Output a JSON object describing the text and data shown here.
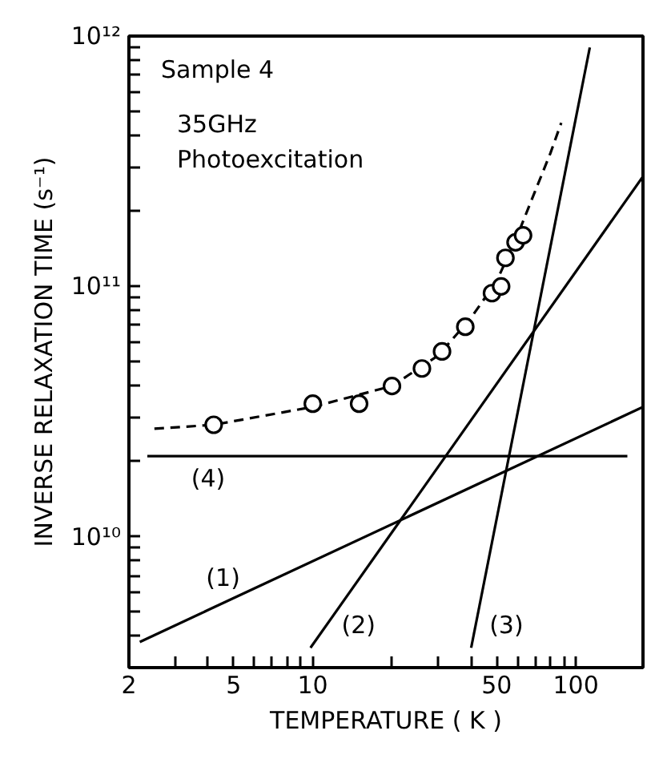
{
  "chart_data": {
    "type": "scatter",
    "xlabel": "TEMPERATURE ( K )",
    "ylabel": "INVERSE RELAXATION TIME (s⁻¹)",
    "log": "xy",
    "grid": false,
    "xlim": [
      2,
      180
    ],
    "ylim": [
      3000000000.0,
      1000000000000.0
    ],
    "xticks": [
      2,
      {
        "value": 3,
        "label": null
      },
      {
        "value": 4,
        "label": null
      },
      5,
      {
        "value": 6,
        "label": null
      },
      {
        "value": 7,
        "label": null
      },
      {
        "value": 8,
        "label": null
      },
      {
        "value": 9,
        "label": null
      },
      10,
      {
        "value": 20,
        "label": null
      },
      {
        "value": 30,
        "label": null
      },
      {
        "value": 40,
        "label": null
      },
      50,
      {
        "value": 60,
        "label": null
      },
      {
        "value": 70,
        "label": null
      },
      {
        "value": 80,
        "label": null
      },
      {
        "value": 90,
        "label": null
      },
      100
    ],
    "yticks": [
      {
        "value": 4000000000.0,
        "label": null
      },
      {
        "value": 5000000000.0,
        "label": null
      },
      {
        "value": 6000000000.0,
        "label": null
      },
      {
        "value": 7000000000.0,
        "label": null
      },
      {
        "value": 8000000000.0,
        "label": null
      },
      {
        "value": 9000000000.0,
        "label": null
      },
      {
        "value": 10000000000.0,
        "label": "10¹⁰"
      },
      {
        "value": 20000000000.0,
        "label": null
      },
      {
        "value": 30000000000.0,
        "label": null
      },
      {
        "value": 40000000000.0,
        "label": null
      },
      {
        "value": 50000000000.0,
        "label": null
      },
      {
        "value": 60000000000.0,
        "label": null
      },
      {
        "value": 70000000000.0,
        "label": null
      },
      {
        "value": 80000000000.0,
        "label": null
      },
      {
        "value": 90000000000.0,
        "label": null
      },
      {
        "value": 100000000000.0,
        "label": "10¹¹"
      },
      {
        "value": 200000000000.0,
        "label": null
      },
      {
        "value": 300000000000.0,
        "label": null
      },
      {
        "value": 400000000000.0,
        "label": null
      },
      {
        "value": 500000000000.0,
        "label": null
      },
      {
        "value": 600000000000.0,
        "label": null
      },
      {
        "value": 700000000000.0,
        "label": null
      },
      {
        "value": 800000000000.0,
        "label": null
      },
      {
        "value": 900000000000.0,
        "label": null
      },
      {
        "value": 1000000000000.0,
        "label": "10¹²"
      }
    ],
    "series": [
      {
        "marker": "circle",
        "color": "#000000",
        "x": [
          4.2,
          10,
          15,
          20,
          26,
          31,
          38,
          48,
          52,
          54,
          59,
          63
        ],
        "values": [
          28000000000.0,
          34000000000.0,
          34000000000.0,
          40000000000.0,
          47000000000.0,
          55000000000.0,
          69000000000.0,
          94000000000.0,
          100000000000.0,
          130000000000.0,
          150000000000.0,
          160000000000.0
        ]
      },
      {
        "type": "line",
        "line_style": "dashed",
        "color": "#000000",
        "x": [
          2.5,
          4.2,
          10,
          20,
          30,
          40,
          50,
          60,
          70,
          80,
          88
        ],
        "values": [
          27000000000.0,
          28000000000.0,
          33000000000.0,
          40000000000.0,
          53000000000.0,
          75000000000.0,
          105000000000.0,
          160000000000.0,
          240000000000.0,
          340000000000.0,
          450000000000.0
        ]
      },
      {
        "type": "line",
        "name": "(1)",
        "line_style": "solid",
        "color": "#000000",
        "x": [
          2.2,
          180
        ],
        "values": [
          3800000000.0,
          33000000000.0
        ]
      },
      {
        "type": "line",
        "name": "(2)",
        "line_style": "solid",
        "color": "#000000",
        "x": [
          9.8,
          180
        ],
        "values": [
          3600000000.0,
          275000000000.0
        ]
      },
      {
        "type": "line",
        "name": "(3)",
        "line_style": "solid",
        "color": "#000000",
        "x": [
          40,
          113
        ],
        "values": [
          3600000000.0,
          900000000000.0
        ]
      },
      {
        "type": "line",
        "name": "(4)",
        "line_style": "solid",
        "color": "#000000",
        "x": [
          2.35,
          157
        ],
        "values": [
          21000000000.0,
          21000000000.0
        ]
      }
    ],
    "annotations": [
      "Sample 4",
      "35GHz",
      "Photoexcitation"
    ]
  }
}
